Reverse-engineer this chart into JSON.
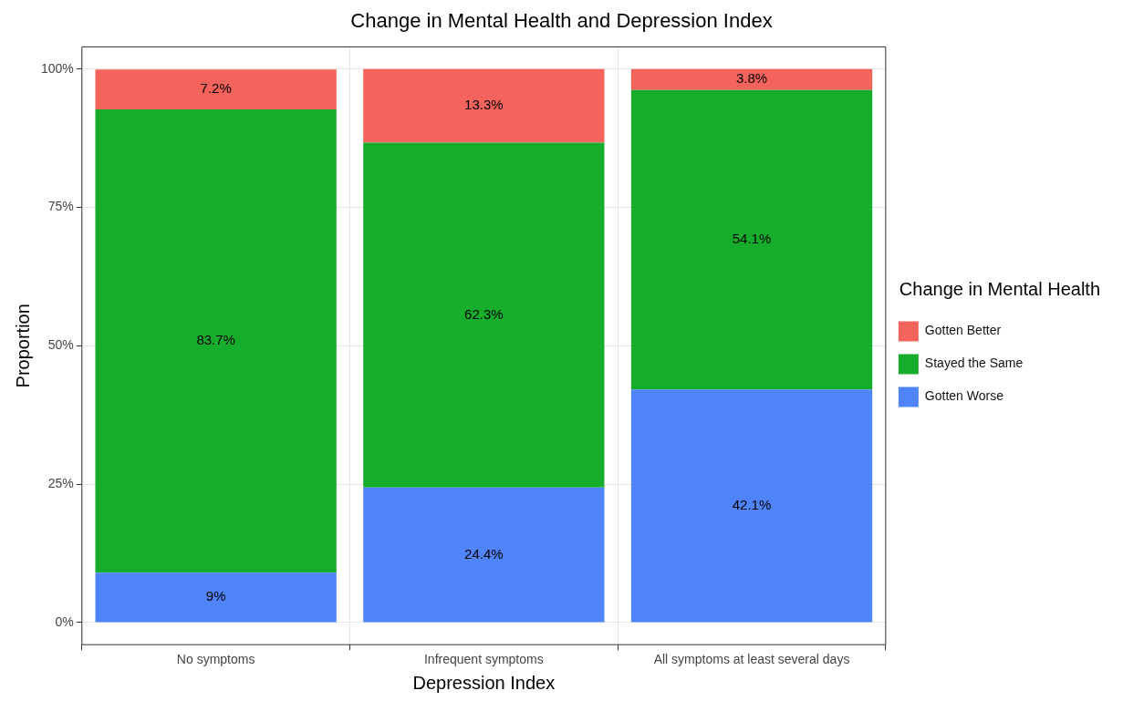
{
  "chart_data": {
    "type": "bar",
    "title": "Change in Mental Health and Depression Index",
    "xlabel": "Depression Index",
    "ylabel": "Proportion",
    "legend_title": "Change in Mental Health",
    "categories": [
      "No symptoms",
      "Infrequent symptoms",
      "All symptoms at least several days"
    ],
    "stacked": true,
    "series": [
      {
        "name": "Gotten Worse",
        "color": "#4f84fb",
        "values": [
          9,
          24.4,
          42.1
        ],
        "value_labels": [
          "9%",
          "24.4%",
          "42.1%"
        ]
      },
      {
        "name": "Stayed the Same",
        "color": "#17ad2c",
        "values": [
          83.7,
          62.3,
          54.1
        ],
        "value_labels": [
          "83.7%",
          "62.3%",
          "54.1%"
        ]
      },
      {
        "name": "Gotten Better",
        "color": "#f5645c",
        "values": [
          7.2,
          13.3,
          3.8
        ],
        "value_labels": [
          "7.2%",
          "13.3%",
          "3.8%"
        ]
      }
    ],
    "ylim": [
      -4,
      104
    ],
    "yticks": [
      {
        "value": 0,
        "label": "0%"
      },
      {
        "value": 25,
        "label": "25%"
      },
      {
        "value": 50,
        "label": "50%"
      },
      {
        "value": 75,
        "label": "75%"
      },
      {
        "value": 100,
        "label": "100%"
      }
    ],
    "grid": true,
    "legend": "right"
  }
}
